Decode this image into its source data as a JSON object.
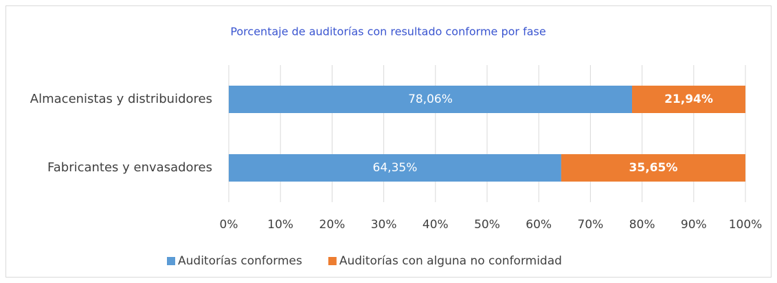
{
  "chart_data": {
    "type": "bar",
    "orientation": "horizontal",
    "stacked": true,
    "title": "Porcentaje de auditorías con resultado conforme por fase",
    "categories": [
      "Almacenistas y distribuidores",
      "Fabricantes y envasadores"
    ],
    "series": [
      {
        "name": "Auditorías conformes",
        "color": "#5b9bd5",
        "values": [
          78.06,
          64.35
        ],
        "value_labels": [
          "78,06%",
          "64,35%"
        ]
      },
      {
        "name": "Auditorías con alguna no conformidad",
        "color": "#ed7d31",
        "values": [
          21.94,
          35.65
        ],
        "value_labels": [
          "21,94%",
          "35,65%"
        ]
      }
    ],
    "xlim": [
      0,
      100
    ],
    "xticks": [
      {
        "value": 0,
        "label": "0%"
      },
      {
        "value": 10,
        "label": "10%"
      },
      {
        "value": 20,
        "label": "20%"
      },
      {
        "value": 30,
        "label": "30%"
      },
      {
        "value": 40,
        "label": "40%"
      },
      {
        "value": 50,
        "label": "50%"
      },
      {
        "value": 60,
        "label": "60%"
      },
      {
        "value": 70,
        "label": "70%"
      },
      {
        "value": 80,
        "label": "80%"
      },
      {
        "value": 90,
        "label": "90%"
      },
      {
        "value": 100,
        "label": "100%"
      }
    ],
    "grid": true,
    "legend": "bottom"
  }
}
